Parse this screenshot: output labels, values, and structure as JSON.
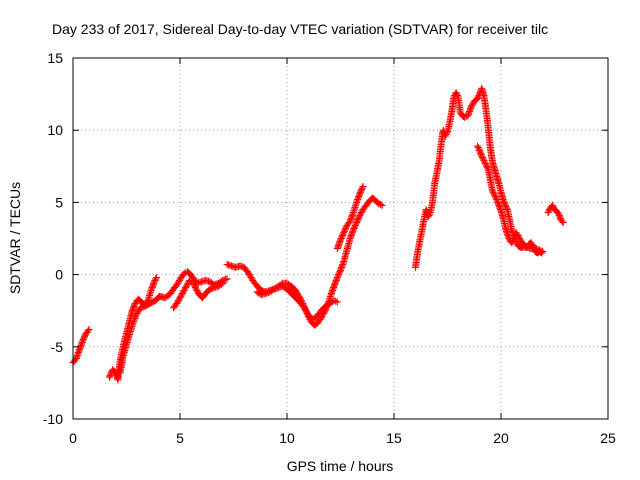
{
  "chart_data": {
    "type": "scatter",
    "title": "Day 233 of 2017, Sidereal Day-to-day VTEC variation (SDTVAR) for receiver tilc",
    "xlabel": "GPS time / hours",
    "ylabel": "SDTVAR / TECUs",
    "xlim": [
      0,
      25
    ],
    "ylim": [
      -10,
      15
    ],
    "xticks": [
      0,
      5,
      10,
      15,
      20,
      25
    ],
    "yticks": [
      -10,
      -5,
      0,
      5,
      10,
      15
    ],
    "xtick_labels": [
      "0",
      "5",
      "10",
      "15",
      "20",
      "25"
    ],
    "ytick_labels": [
      "-10",
      "-5",
      "0",
      "5",
      "10",
      "15"
    ],
    "grid": true,
    "marker": "+",
    "color": "#ff0000",
    "series": [
      {
        "name": "SDTVAR",
        "tracks": [
          [
            [
              0.0,
              -6.1
            ],
            [
              0.15,
              -5.8
            ],
            [
              0.3,
              -5.2
            ],
            [
              0.45,
              -4.6
            ],
            [
              0.6,
              -4.1
            ],
            [
              0.75,
              -3.8
            ]
          ],
          [
            [
              1.7,
              -7.1
            ],
            [
              1.85,
              -6.6
            ],
            [
              2.0,
              -6.8
            ],
            [
              2.1,
              -7.3
            ],
            [
              2.2,
              -6.0
            ],
            [
              2.3,
              -5.3
            ],
            [
              2.45,
              -4.3
            ],
            [
              2.6,
              -3.5
            ],
            [
              2.75,
              -2.6
            ],
            [
              2.9,
              -2.0
            ],
            [
              3.05,
              -1.7
            ],
            [
              3.2,
              -1.9
            ],
            [
              3.35,
              -2.1
            ],
            [
              3.5,
              -1.8
            ],
            [
              3.65,
              -1.1
            ],
            [
              3.8,
              -0.5
            ],
            [
              3.9,
              -0.2
            ]
          ],
          [
            [
              2.2,
              -6.8
            ],
            [
              2.35,
              -5.6
            ],
            [
              2.55,
              -4.6
            ],
            [
              2.75,
              -3.6
            ],
            [
              2.95,
              -2.8
            ],
            [
              3.15,
              -2.3
            ],
            [
              3.35,
              -2.2
            ],
            [
              3.6,
              -2.0
            ],
            [
              3.85,
              -1.8
            ],
            [
              4.05,
              -1.5
            ],
            [
              4.3,
              -1.6
            ],
            [
              4.5,
              -1.4
            ],
            [
              4.7,
              -1.0
            ],
            [
              4.9,
              -0.6
            ],
            [
              5.05,
              -0.2
            ],
            [
              5.2,
              0.1
            ],
            [
              5.35,
              0.2
            ],
            [
              5.5,
              0.0
            ],
            [
              5.65,
              -0.3
            ],
            [
              5.8,
              -0.6
            ],
            [
              6.0,
              -0.5
            ],
            [
              6.2,
              -0.4
            ],
            [
              6.4,
              -0.5
            ],
            [
              6.6,
              -0.7
            ],
            [
              6.8,
              -0.6
            ],
            [
              7.0,
              -0.4
            ],
            [
              7.2,
              -0.3
            ]
          ],
          [
            [
              4.7,
              -2.3
            ],
            [
              4.85,
              -2.0
            ],
            [
              5.0,
              -1.6
            ],
            [
              5.15,
              -1.2
            ],
            [
              5.3,
              -0.8
            ],
            [
              5.45,
              -0.4
            ],
            [
              5.6,
              -0.5
            ],
            [
              5.75,
              -1.0
            ],
            [
              5.9,
              -1.4
            ],
            [
              6.05,
              -1.6
            ],
            [
              6.2,
              -1.3
            ],
            [
              6.4,
              -1.0
            ],
            [
              6.6,
              -0.9
            ],
            [
              6.8,
              -0.8
            ],
            [
              7.0,
              -0.6
            ]
          ],
          [
            [
              7.2,
              0.7
            ],
            [
              7.4,
              0.6
            ],
            [
              7.6,
              0.5
            ],
            [
              7.8,
              0.6
            ],
            [
              8.0,
              0.5
            ],
            [
              8.2,
              0.1
            ],
            [
              8.4,
              -0.4
            ],
            [
              8.6,
              -0.8
            ],
            [
              8.8,
              -1.1
            ],
            [
              9.0,
              -1.2
            ],
            [
              9.2,
              -1.1
            ],
            [
              9.4,
              -1.0
            ],
            [
              9.6,
              -0.8
            ],
            [
              9.8,
              -0.6
            ],
            [
              10.0,
              -0.6
            ],
            [
              10.2,
              -0.8
            ],
            [
              10.4,
              -1.1
            ],
            [
              10.6,
              -1.6
            ],
            [
              10.8,
              -2.2
            ],
            [
              11.0,
              -2.9
            ],
            [
              11.15,
              -3.3
            ],
            [
              11.3,
              -3.5
            ],
            [
              11.45,
              -3.3
            ],
            [
              11.6,
              -3.0
            ],
            [
              11.75,
              -2.6
            ],
            [
              11.9,
              -2.1
            ],
            [
              12.05,
              -1.4
            ],
            [
              12.2,
              -0.8
            ],
            [
              12.35,
              -0.2
            ],
            [
              12.5,
              0.3
            ],
            [
              12.65,
              0.9
            ],
            [
              12.8,
              1.7
            ],
            [
              12.95,
              2.5
            ],
            [
              13.1,
              3.1
            ],
            [
              13.25,
              3.6
            ],
            [
              13.4,
              4.1
            ],
            [
              13.55,
              4.5
            ],
            [
              13.7,
              4.8
            ],
            [
              13.85,
              5.1
            ],
            [
              14.0,
              5.3
            ],
            [
              14.15,
              5.1
            ],
            [
              14.3,
              4.9
            ],
            [
              14.45,
              4.8
            ]
          ],
          [
            [
              8.6,
              -1.2
            ],
            [
              8.8,
              -1.4
            ],
            [
              9.0,
              -1.3
            ],
            [
              9.2,
              -1.2
            ],
            [
              9.4,
              -1.0
            ],
            [
              9.6,
              -0.9
            ],
            [
              9.8,
              -0.8
            ],
            [
              10.0,
              -1.0
            ],
            [
              10.2,
              -1.3
            ],
            [
              10.4,
              -1.6
            ],
            [
              10.6,
              -1.9
            ],
            [
              10.8,
              -2.3
            ],
            [
              11.0,
              -2.8
            ],
            [
              11.2,
              -3.1
            ],
            [
              11.4,
              -2.9
            ],
            [
              11.6,
              -2.5
            ],
            [
              11.8,
              -2.2
            ],
            [
              12.0,
              -2.0
            ],
            [
              12.2,
              -1.8
            ],
            [
              12.35,
              -1.9
            ]
          ],
          [
            [
              12.35,
              1.8
            ],
            [
              12.5,
              2.4
            ],
            [
              12.65,
              2.9
            ],
            [
              12.8,
              3.4
            ],
            [
              12.95,
              3.7
            ],
            [
              13.1,
              4.3
            ],
            [
              13.25,
              5.0
            ],
            [
              13.4,
              5.6
            ],
            [
              13.55,
              6.1
            ]
          ],
          [
            [
              16.0,
              0.5
            ],
            [
              16.1,
              1.5
            ],
            [
              16.2,
              2.3
            ],
            [
              16.3,
              3.0
            ],
            [
              16.4,
              3.8
            ],
            [
              16.5,
              4.5
            ],
            [
              16.6,
              4.0
            ],
            [
              16.7,
              4.3
            ],
            [
              16.8,
              5.0
            ],
            [
              16.9,
              6.3
            ],
            [
              17.0,
              7.0
            ],
            [
              17.1,
              7.8
            ],
            [
              17.2,
              9.0
            ],
            [
              17.3,
              10.0
            ],
            [
              17.4,
              9.6
            ],
            [
              17.5,
              9.9
            ],
            [
              17.6,
              10.5
            ],
            [
              17.7,
              11.3
            ],
            [
              17.8,
              12.3
            ],
            [
              17.9,
              12.6
            ],
            [
              18.0,
              12.3
            ],
            [
              18.1,
              11.2
            ],
            [
              18.2,
              11.0
            ],
            [
              18.3,
              10.9
            ],
            [
              18.45,
              11.0
            ],
            [
              18.6,
              11.6
            ],
            [
              18.75,
              12.0
            ],
            [
              18.9,
              12.2
            ],
            [
              19.0,
              12.5
            ],
            [
              19.1,
              12.9
            ],
            [
              19.2,
              12.4
            ],
            [
              19.3,
              11.4
            ],
            [
              19.4,
              10.2
            ],
            [
              19.5,
              8.8
            ],
            [
              19.6,
              7.8
            ],
            [
              19.7,
              7.3
            ],
            [
              19.8,
              6.8
            ],
            [
              19.9,
              6.3
            ],
            [
              20.0,
              5.7
            ],
            [
              20.1,
              5.2
            ],
            [
              20.2,
              4.8
            ],
            [
              20.3,
              4.5
            ],
            [
              20.4,
              3.8
            ],
            [
              20.5,
              3.1
            ],
            [
              20.6,
              2.6
            ],
            [
              20.7,
              2.3
            ],
            [
              20.8,
              2.0
            ],
            [
              20.9,
              1.9
            ],
            [
              21.0,
              1.9
            ],
            [
              21.2,
              1.9
            ],
            [
              21.4,
              1.8
            ],
            [
              21.6,
              1.8
            ],
            [
              21.8,
              1.7
            ],
            [
              21.95,
              1.6
            ]
          ],
          [
            [
              18.9,
              8.9
            ],
            [
              19.0,
              8.6
            ],
            [
              19.1,
              8.2
            ],
            [
              19.2,
              7.9
            ],
            [
              19.3,
              7.6
            ],
            [
              19.4,
              7.3
            ],
            [
              19.5,
              6.6
            ],
            [
              19.6,
              5.8
            ],
            [
              19.7,
              5.5
            ],
            [
              19.8,
              5.2
            ],
            [
              19.9,
              4.8
            ],
            [
              20.0,
              4.4
            ],
            [
              20.1,
              3.9
            ],
            [
              20.2,
              3.3
            ],
            [
              20.3,
              2.8
            ],
            [
              20.4,
              2.4
            ],
            [
              20.5,
              2.2
            ],
            [
              20.6,
              2.4
            ],
            [
              20.7,
              2.9
            ],
            [
              20.8,
              2.7
            ],
            [
              20.9,
              2.4
            ],
            [
              21.0,
              2.2
            ],
            [
              21.1,
              2.0
            ],
            [
              21.2,
              1.9
            ],
            [
              21.3,
              2.1
            ],
            [
              21.4,
              2.2
            ],
            [
              21.5,
              2.0
            ],
            [
              21.6,
              1.6
            ],
            [
              21.7,
              1.5
            ],
            [
              21.8,
              1.6
            ],
            [
              21.9,
              1.5
            ]
          ],
          [
            [
              22.2,
              4.3
            ],
            [
              22.3,
              4.6
            ],
            [
              22.4,
              4.8
            ],
            [
              22.5,
              4.5
            ],
            [
              22.6,
              4.4
            ],
            [
              22.7,
              4.2
            ],
            [
              22.8,
              3.8
            ],
            [
              22.9,
              3.6
            ]
          ]
        ]
      }
    ]
  }
}
